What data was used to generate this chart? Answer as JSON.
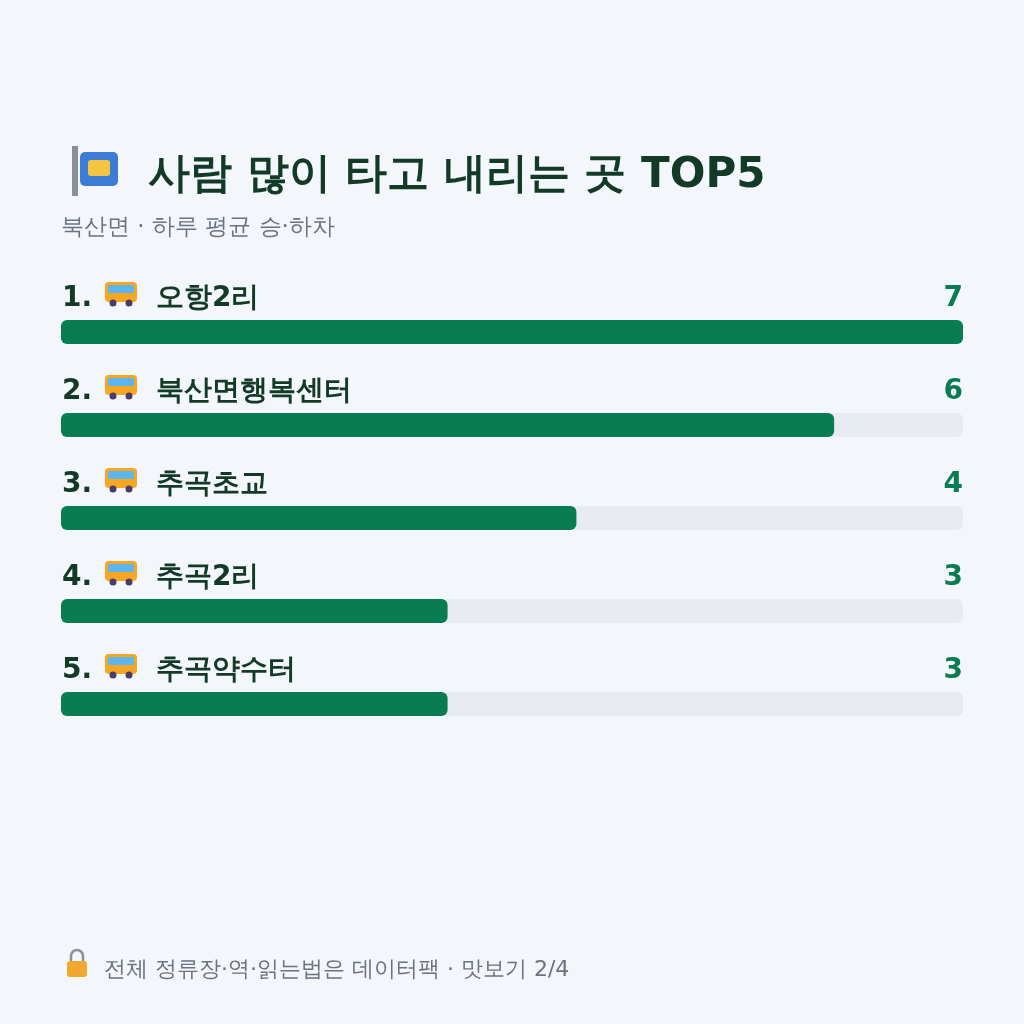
{
  "chart_data": {
    "type": "bar",
    "orientation": "horizontal",
    "title": "사람 많이 타고 내리는 곳 TOP5",
    "subtitle": "북산면 · 하루 평균 승·하차",
    "categories": [
      "1. 오항2리",
      "2. 북산면행복센터",
      "3. 추곡초교",
      "4. 추곡2리",
      "5. 추곡약수터"
    ],
    "values": [
      7,
      6,
      4,
      3,
      3
    ],
    "color": "#0a7c52",
    "data_labels": true,
    "annotations": [
      "전체 정류장·역·읽는법은 데이터팩 · 맛보기 2/4"
    ]
  }
}
